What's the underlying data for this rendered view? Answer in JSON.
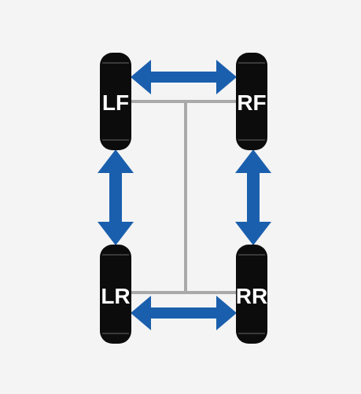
{
  "colors": {
    "background": "#f4f4f4",
    "tire": "#0c0c0c",
    "tread": "#3a3a3a",
    "chassis": "#a9a9a9",
    "arrow": "#1a5fad",
    "label": "#ffffff"
  },
  "tires": {
    "lf": "LF",
    "rf": "RF",
    "lr": "LR",
    "rr": "RR"
  },
  "arrows": [
    {
      "from": "LF",
      "to": "RF",
      "direction": "bidirectional"
    },
    {
      "from": "LF",
      "to": "LR",
      "direction": "bidirectional"
    },
    {
      "from": "RF",
      "to": "RR",
      "direction": "bidirectional"
    },
    {
      "from": "LR",
      "to": "RR",
      "direction": "bidirectional"
    }
  ]
}
